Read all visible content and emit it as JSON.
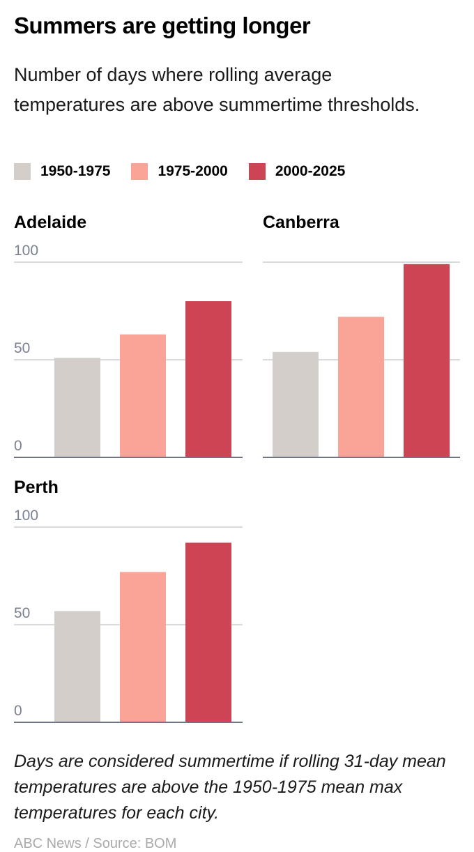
{
  "title": "Summers are getting longer",
  "subtitle": "Number of days where rolling average temperatures are above summertime thresholds.",
  "legend": [
    {
      "label": "1950-1975",
      "color": "#d3ceca"
    },
    {
      "label": "1975-2000",
      "color": "#f9a497"
    },
    {
      "label": "2000-2025",
      "color": "#cd4554"
    }
  ],
  "note": "Days are considered summertime if rolling 31-day mean temperatures are above the 1950-1975 mean max temperatures for each city.",
  "source": "ABC News / Source: BOM",
  "chart_data": [
    {
      "type": "bar",
      "title": "Adelaide",
      "categories": [
        "1950-1975",
        "1975-2000",
        "2000-2025"
      ],
      "values": [
        51,
        63,
        80
      ],
      "ylim": [
        0,
        100
      ],
      "yticks": [
        "0",
        "50",
        "100"
      ],
      "grid": true
    },
    {
      "type": "bar",
      "title": "Canberra",
      "categories": [
        "1950-1975",
        "1975-2000",
        "2000-2025"
      ],
      "values": [
        54,
        72,
        99
      ],
      "ylim": [
        0,
        100
      ],
      "yticks": [],
      "grid": true
    },
    {
      "type": "bar",
      "title": "Perth",
      "categories": [
        "1950-1975",
        "1975-2000",
        "2000-2025"
      ],
      "values": [
        57,
        77,
        92
      ],
      "ylim": [
        0,
        100
      ],
      "yticks": [
        "0",
        "50",
        "100"
      ],
      "grid": true
    }
  ]
}
